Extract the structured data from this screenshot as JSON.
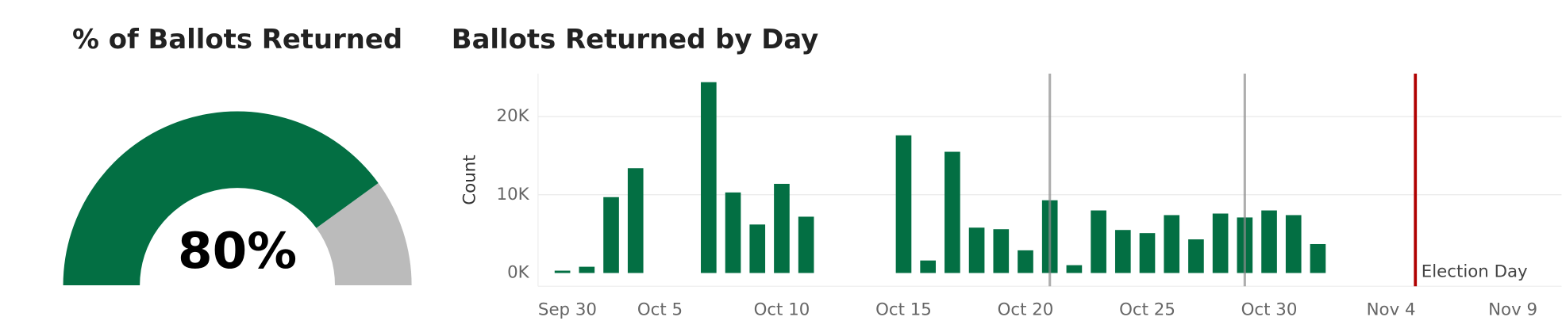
{
  "chart_data": [
    {
      "type": "gauge",
      "title": "% of Ballots Returned",
      "values": [
        80
      ],
      "value_labels": [
        "80%"
      ],
      "ylim": [
        0,
        100
      ],
      "color": "#036f43",
      "rest_color": "#bbbbbb"
    },
    {
      "type": "bar",
      "title": "Ballots Returned by Day",
      "y_label": "Count",
      "color": "#036f43",
      "x": [
        "Oct 1",
        "Oct 2",
        "Oct 3",
        "Oct 4",
        "Oct 7",
        "Oct 8",
        "Oct 9",
        "Oct 10",
        "Oct 11",
        "Oct 15",
        "Oct 16",
        "Oct 17",
        "Oct 18",
        "Oct 19",
        "Oct 20",
        "Oct 21",
        "Oct 22",
        "Oct 23",
        "Oct 24",
        "Oct 25",
        "Oct 26",
        "Oct 27",
        "Oct 28",
        "Oct 29",
        "Oct 30",
        "Oct 31",
        "Nov 1"
      ],
      "values": [
        300,
        800,
        9700,
        13400,
        24400,
        10300,
        6200,
        11400,
        7200,
        17600,
        1600,
        15500,
        5800,
        5600,
        2900,
        9300,
        1000,
        8000,
        5500,
        5100,
        7400,
        4300,
        7600,
        7100,
        8000,
        7400,
        3700
      ],
      "xlim": [
        "Sep 30",
        "Nov 11"
      ],
      "xticks": [
        "Sep 30",
        "Oct 5",
        "Oct 10",
        "Oct 15",
        "Oct 20",
        "Oct 25",
        "Oct 30",
        "Nov 4",
        "Nov 9"
      ],
      "ylim": [
        -1700,
        25500
      ],
      "yticks": [
        {
          "value": 0,
          "label": "0K"
        },
        {
          "value": 10000,
          "label": "10K"
        },
        {
          "value": 20000,
          "label": "20K"
        }
      ],
      "grid": true,
      "reference_lines": [
        {
          "x": "Oct 21",
          "color": "#8c8c8c"
        },
        {
          "x": "Oct 29",
          "color": "#8c8c8c"
        },
        {
          "x": "Nov 5",
          "label": "Election Day",
          "color": "#b00000"
        }
      ]
    }
  ]
}
